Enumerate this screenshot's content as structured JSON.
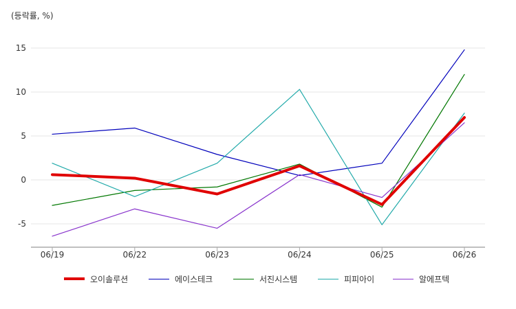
{
  "chart_data": {
    "type": "line",
    "unit_label": "(등락률, %)",
    "categories": [
      "06/19",
      "06/22",
      "06/23",
      "06/24",
      "06/25",
      "06/26"
    ],
    "ylim": [
      -7.5,
      17.5
    ],
    "yticks": [
      15,
      10,
      5,
      0,
      -5
    ],
    "grid": true,
    "legend_position": "bottom",
    "series": [
      {
        "name": "오이솔루션",
        "color": "#e00000",
        "width": 4,
        "values": [
          0.6,
          0.2,
          -1.6,
          1.6,
          -2.8,
          7.1
        ]
      },
      {
        "name": "에이스테크",
        "color": "#0000bb",
        "width": 1.2,
        "values": [
          5.2,
          5.9,
          2.9,
          0.5,
          1.9,
          14.8
        ]
      },
      {
        "name": "서진시스템",
        "color": "#007700",
        "width": 1.2,
        "values": [
          -2.9,
          -1.2,
          -0.8,
          1.8,
          -3.1,
          12.0
        ]
      },
      {
        "name": "피피아이",
        "color": "#22aaaa",
        "width": 1.2,
        "values": [
          1.9,
          -1.9,
          1.9,
          10.3,
          -5.1,
          7.6
        ]
      },
      {
        "name": "알에프텍",
        "color": "#8833cc",
        "width": 1.2,
        "values": [
          -6.4,
          -3.3,
          -5.5,
          0.6,
          -2.0,
          6.5
        ]
      }
    ]
  }
}
